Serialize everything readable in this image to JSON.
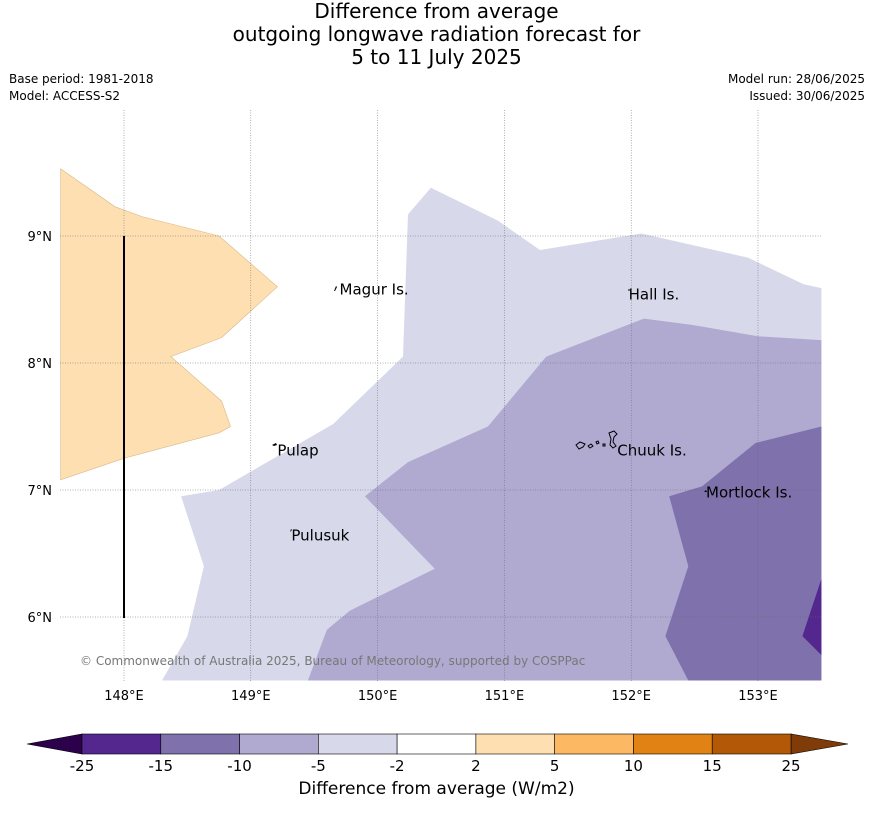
{
  "title_lines": [
    "Difference from average",
    "outgoing longwave radiation forecast for",
    "5 to 11 July 2025"
  ],
  "base_period": "Base period: 1981-2018",
  "model": "Model: ACCESS-S2",
  "model_run": "Model run: 28/06/2025",
  "issued": "Issued: 30/06/2025",
  "copyright": "© Commonwealth of Australia 2025, Bureau of Meteorology, supported by COSPPac",
  "lon_ticks": [
    {
      "value": 148,
      "label": "148°E"
    },
    {
      "value": 149,
      "label": "149°E"
    },
    {
      "value": 150,
      "label": "150°E"
    },
    {
      "value": 151,
      "label": "151°E"
    },
    {
      "value": 152,
      "label": "152°E"
    },
    {
      "value": 153,
      "label": "153°E"
    }
  ],
  "lat_ticks": [
    {
      "value": 9,
      "label": "9°N"
    },
    {
      "value": 8,
      "label": "8°N"
    },
    {
      "value": 7,
      "label": "7°N"
    },
    {
      "value": 6,
      "label": "6°N"
    }
  ],
  "places": [
    {
      "name": "Magur Is.",
      "lon": 149.7,
      "lat": 8.58
    },
    {
      "name": "Hall Is.",
      "lon": 151.98,
      "lat": 8.54
    },
    {
      "name": "Pulap",
      "lon": 149.21,
      "lat": 7.31
    },
    {
      "name": "Chuuk Is.",
      "lon": 151.89,
      "lat": 7.31
    },
    {
      "name": "Mortlock Is.",
      "lon": 152.59,
      "lat": 6.98
    },
    {
      "name": "Pulusuk",
      "lon": 149.32,
      "lat": 6.64
    }
  ],
  "colorbar": {
    "title": "Difference from average (W/m2)",
    "ticks": [
      "-25",
      "-15",
      "-10",
      "-5",
      "-2",
      "2",
      "5",
      "10",
      "15",
      "25"
    ],
    "colors": [
      "#54278f",
      "#7f72ac",
      "#b0aad1",
      "#d7d8ea",
      "#ffffff",
      "#fddfb1",
      "#fdb863",
      "#e08214",
      "#b35806"
    ],
    "under_color": "#2d004b",
    "over_color": "#7f3b08"
  },
  "chart_data": {
    "type": "filled-contour-map",
    "extent": {
      "lon": [
        147.5,
        153.5
      ],
      "lat": [
        5.5,
        10.0
      ]
    },
    "regions": [
      {
        "level": "2 to 5",
        "color": "#fddfb1",
        "points": [
          [
            147.5,
            9.53
          ],
          [
            147.93,
            9.23
          ],
          [
            148.15,
            9.15
          ],
          [
            148.75,
            9.0
          ],
          [
            149.21,
            8.6
          ],
          [
            148.77,
            8.2
          ],
          [
            148.37,
            8.05
          ],
          [
            148.77,
            7.7
          ],
          [
            148.84,
            7.5
          ],
          [
            148.75,
            7.45
          ],
          [
            148.0,
            7.25
          ],
          [
            147.5,
            7.08
          ]
        ]
      },
      {
        "level": "-5 to -2",
        "color": "#d7d8ea",
        "points": [
          [
            153.5,
            8.59
          ],
          [
            153.36,
            8.62
          ],
          [
            152.92,
            8.83
          ],
          [
            152.08,
            9.02
          ],
          [
            151.28,
            8.89
          ],
          [
            150.95,
            9.12
          ],
          [
            150.42,
            9.38
          ],
          [
            150.24,
            9.17
          ],
          [
            150.2,
            8.05
          ],
          [
            149.65,
            7.52
          ],
          [
            148.75,
            7.0
          ],
          [
            148.45,
            6.95
          ],
          [
            148.63,
            6.4
          ],
          [
            148.5,
            5.85
          ],
          [
            148.3,
            5.5
          ],
          [
            153.5,
            5.5
          ]
        ]
      },
      {
        "level": "-10 to -5",
        "color": "#b0aad1",
        "points": [
          [
            153.5,
            8.18
          ],
          [
            153.0,
            8.21
          ],
          [
            152.48,
            8.3
          ],
          [
            152.1,
            8.35
          ],
          [
            151.33,
            8.05
          ],
          [
            150.87,
            7.5
          ],
          [
            150.24,
            7.22
          ],
          [
            149.9,
            6.95
          ],
          [
            150.45,
            6.38
          ],
          [
            149.78,
            6.05
          ],
          [
            149.6,
            5.9
          ],
          [
            149.45,
            5.5
          ],
          [
            153.5,
            5.5
          ]
        ]
      },
      {
        "level": "-15 to -10",
        "color": "#7f72ac",
        "points": [
          [
            153.5,
            7.5
          ],
          [
            152.98,
            7.37
          ],
          [
            152.56,
            7.03
          ],
          [
            152.3,
            6.95
          ],
          [
            152.45,
            6.4
          ],
          [
            152.27,
            5.85
          ],
          [
            152.45,
            5.5
          ],
          [
            153.5,
            5.5
          ]
        ]
      },
      {
        "level": "-25 to -15",
        "color": "#54278f",
        "points": [
          [
            153.5,
            6.3
          ],
          [
            153.35,
            5.85
          ],
          [
            153.5,
            5.7
          ]
        ]
      }
    ],
    "legend": "bottom",
    "grid": true
  }
}
